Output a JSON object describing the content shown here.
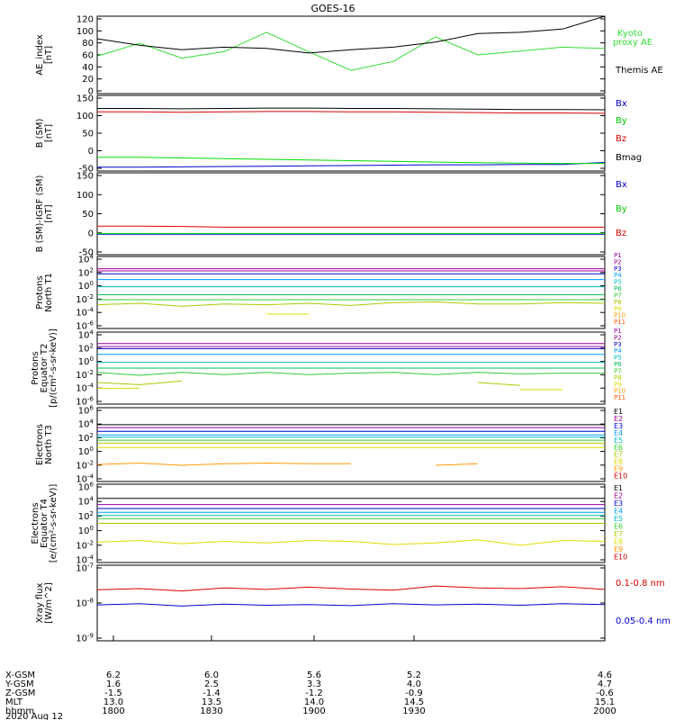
{
  "title": "GOES-16",
  "colors": {
    "black": "#000000",
    "blue": "#0000cc",
    "green": "#00dd00",
    "red": "#dd0000",
    "ae_kyoto": "#33dd33",
    "p": [
      "#cc00cc",
      "#9900cc",
      "#0000ff",
      "#0099ff",
      "#00cccc",
      "#00cc66",
      "#33dd33",
      "#aadd00",
      "#dddd00",
      "#ffaa00",
      "#ff6600",
      "#dd0000",
      "#aa0000"
    ]
  },
  "panels": {
    "ae": {
      "ylabel": [
        "AE_index",
        "[nT]"
      ],
      "yticks": [
        "120",
        "100",
        "80",
        "60",
        "40",
        "20",
        "0"
      ],
      "legend": [
        {
          "text": "Kyoto",
          "color": "#33dd33"
        },
        {
          "text": "proxy AE",
          "color": "#33dd33"
        },
        {
          "text": "Themis AE",
          "color": "#000000"
        }
      ]
    },
    "b": {
      "ylabel": [
        "B (SM)",
        "[nT]"
      ],
      "yticks": [
        "150",
        "100",
        "50",
        "0",
        "-50"
      ],
      "legend": [
        {
          "text": "Bx",
          "color": "#0000cc"
        },
        {
          "text": "By",
          "color": "#00cc00"
        },
        {
          "text": "Bz",
          "color": "#dd0000"
        },
        {
          "text": "Bmag",
          "color": "#000000"
        }
      ]
    },
    "bigrf": {
      "ylabel": [
        "B (SM)-IGRF (SM)",
        "[nT]"
      ],
      "yticks": [
        "150",
        "100",
        "50",
        "0",
        "-50"
      ],
      "legend": [
        {
          "text": "Bx",
          "color": "#0000cc"
        },
        {
          "text": "By",
          "color": "#00cc00"
        },
        {
          "text": "Bz",
          "color": "#dd0000"
        }
      ]
    },
    "pn": {
      "ylabel": [
        "Protons",
        "North T1"
      ],
      "yticks": [
        "10^4",
        "10^2",
        "10^0",
        "10^-2",
        "10^-4",
        "10^-6"
      ],
      "legend": [
        "P1",
        "P2",
        "P3",
        "P4",
        "P5",
        "P6",
        "P7",
        "P8",
        "P9",
        "P10",
        "P11"
      ]
    },
    "pe": {
      "ylabel": [
        "Protons",
        "Equator T2",
        "[p/(cm²-s-sr-keV)]"
      ],
      "yticks": [
        "10^4",
        "10^2",
        "10^0",
        "10^-2",
        "10^-4",
        "10^-6"
      ],
      "legend": [
        "P1",
        "P2",
        "P3",
        "P4",
        "P5",
        "P6",
        "P7",
        "P8",
        "P9",
        "P10",
        "P11"
      ]
    },
    "en": {
      "ylabel": [
        "Electrons",
        "North T3"
      ],
      "yticks": [
        "10^6",
        "10^4",
        "10^2",
        "10^0",
        "10^-2",
        "10^-4"
      ],
      "legend": [
        "E1",
        "E2",
        "E3",
        "E4",
        "E5",
        "E6",
        "E7",
        "E8",
        "E9",
        "E10"
      ]
    },
    "ee": {
      "ylabel": [
        "Electrons",
        "Equator T4",
        "[e/(cm²-s-sr-keV)]"
      ],
      "yticks": [
        "10^6",
        "10^4",
        "10^2",
        "10^0",
        "10^-2",
        "10^-4"
      ],
      "legend": [
        "E1",
        "E2",
        "E3",
        "E4",
        "E5",
        "E6",
        "E7",
        "E8",
        "E9",
        "E10"
      ]
    },
    "xray": {
      "ylabel": [
        "Xray flux",
        "[W/m^2]"
      ],
      "yticks": [
        "10^-7",
        "10^-8",
        "10^-9"
      ],
      "legend": [
        {
          "text": "0.1-0.8 nm",
          "color": "#dd0000"
        },
        {
          "text": "0.05-0.4 nm",
          "color": "#0000cc"
        }
      ]
    }
  },
  "xaxis": {
    "row_labels": [
      "X-GSM",
      "Y-GSM",
      "Z-GSM",
      "MLT",
      "hhmm",
      "2020 Aug 12"
    ],
    "columns": [
      {
        "x": "6.2",
        "y": "1.6",
        "z": "-1.5",
        "mlt": "13.0",
        "hhmm": "1800"
      },
      {
        "x": "6.0",
        "y": "2.5",
        "z": "-1.4",
        "mlt": "13.5",
        "hhmm": "1830"
      },
      {
        "x": "5.6",
        "y": "3.3",
        "z": "-1.2",
        "mlt": "14.0",
        "hhmm": "1900"
      },
      {
        "x": "5.2",
        "y": "4.0",
        "z": "-0.9",
        "mlt": "14.5",
        "hhmm": "1930"
      },
      {
        "x": "4.6",
        "y": "4.7",
        "z": "-0.6",
        "mlt": "15.1",
        "hhmm": "2000"
      }
    ]
  },
  "chart_data": {
    "type": "line",
    "title": "GOES-16",
    "x_time_hhmm": [
      "1800",
      "1810",
      "1820",
      "1830",
      "1840",
      "1850",
      "1900",
      "1910",
      "1920",
      "1930",
      "1940",
      "1950",
      "2000"
    ],
    "ae": {
      "ylim": [
        0,
        120
      ],
      "series": [
        {
          "name": "Kyoto proxy AE",
          "values": [
            58,
            78,
            55,
            65,
            95,
            65,
            36,
            50,
            88,
            60,
            66,
            72,
            70
          ]
        },
        {
          "name": "Themis AE",
          "values": [
            85,
            75,
            68,
            72,
            70,
            63,
            68,
            72,
            80,
            93,
            95,
            100,
            120
          ]
        }
      ]
    },
    "b_sm": {
      "ylim": [
        -60,
        160
      ],
      "series": [
        {
          "name": "Bx",
          "values": [
            -49,
            -49,
            -48,
            -47,
            -46,
            -45,
            -44,
            -43,
            -42,
            -42,
            -41,
            -41,
            -35
          ]
        },
        {
          "name": "By",
          "values": [
            -20,
            -20,
            -22,
            -24,
            -26,
            -28,
            -30,
            -32,
            -34,
            -36,
            -37,
            -38,
            -38
          ]
        },
        {
          "name": "Bz",
          "values": [
            112,
            112,
            111,
            112,
            113,
            113,
            112,
            112,
            111,
            110,
            109,
            109,
            108
          ]
        },
        {
          "name": "Bmag",
          "values": [
            122,
            122,
            121,
            122,
            123,
            123,
            122,
            122,
            121,
            120,
            119,
            119,
            118
          ]
        }
      ]
    },
    "b_minus_igrf": {
      "ylim": [
        -60,
        160
      ],
      "series": [
        {
          "name": "Bx",
          "values": [
            -5,
            -5,
            -5,
            -5,
            -5,
            -5,
            -5,
            -5,
            -5,
            -5,
            -5,
            -5,
            -5
          ]
        },
        {
          "name": "By",
          "values": [
            -3,
            -3,
            -3,
            -3,
            -3,
            -3,
            -3,
            -3,
            -3,
            -3,
            -3,
            -3,
            -3
          ]
        },
        {
          "name": "Bz",
          "values": [
            17,
            17,
            16,
            14,
            14,
            14,
            14,
            14,
            14,
            14,
            14,
            14,
            14
          ]
        }
      ]
    },
    "protons_north_log10": {
      "ylim": [
        -6,
        4
      ],
      "series": [
        {
          "name": "P1",
          "values": [
            2.3,
            2.3,
            2.3,
            2.3,
            2.3,
            2.3,
            2.3,
            2.3,
            2.3,
            2.3,
            2.3,
            2.3,
            2.3
          ]
        },
        {
          "name": "P2",
          "values": [
            2.0,
            2.0,
            2.0,
            2.0,
            2.0,
            2.0,
            2.0,
            2.0,
            2.0,
            2.0,
            2.0,
            2.0,
            2.0
          ]
        },
        {
          "name": "P3",
          "values": [
            1.6,
            1.6,
            1.6,
            1.6,
            1.6,
            1.6,
            1.6,
            1.6,
            1.6,
            1.6,
            1.6,
            1.6,
            1.6
          ]
        },
        {
          "name": "P4",
          "values": [
            0.8,
            0.8,
            0.8,
            0.8,
            0.8,
            0.8,
            0.8,
            0.8,
            0.8,
            0.8,
            0.8,
            0.8,
            0.8
          ]
        },
        {
          "name": "P5",
          "values": [
            -0.2,
            -0.2,
            -0.2,
            -0.2,
            -0.2,
            -0.2,
            -0.2,
            -0.2,
            -0.2,
            -0.2,
            -0.2,
            -0.2,
            -0.2
          ]
        },
        {
          "name": "P6",
          "values": [
            -1.3,
            -1.3,
            -1.3,
            -1.3,
            -1.3,
            -1.3,
            -1.3,
            -1.3,
            -1.3,
            -1.3,
            -1.3,
            -1.3,
            -1.3
          ]
        },
        {
          "name": "P7",
          "values": [
            -2.0,
            -2.0,
            -2.0,
            -2.0,
            -2.0,
            -2.0,
            -2.0,
            -2.0,
            -2.0,
            -2.0,
            -2.0,
            -2.0,
            -2.0
          ]
        },
        {
          "name": "P8",
          "values": [
            -2.7,
            -2.5,
            -2.9,
            -2.6,
            -2.7,
            -2.5,
            -2.8,
            -2.4,
            -2.3,
            -2.6,
            -2.6,
            -2.4,
            -2.5
          ]
        },
        {
          "name": "P9",
          "values": [
            null,
            null,
            null,
            null,
            -4.0,
            -4.0,
            null,
            null,
            null,
            null,
            null,
            null,
            null
          ]
        }
      ]
    },
    "protons_equator_log10": {
      "ylim": [
        -6,
        4
      ],
      "series": [
        {
          "name": "P1",
          "values": [
            2.4,
            2.4,
            2.4,
            2.4,
            2.4,
            2.4,
            2.4,
            2.4,
            2.4,
            2.4,
            2.4,
            2.4,
            2.4
          ]
        },
        {
          "name": "P2",
          "values": [
            2.0,
            2.0,
            2.0,
            2.0,
            2.0,
            2.0,
            2.0,
            2.0,
            2.0,
            2.0,
            2.0,
            2.0,
            2.0
          ]
        },
        {
          "name": "P3",
          "values": [
            1.7,
            1.7,
            1.7,
            1.7,
            1.7,
            1.7,
            1.7,
            1.7,
            1.7,
            1.7,
            1.7,
            1.7,
            1.7
          ]
        },
        {
          "name": "P4",
          "values": [
            0.9,
            0.9,
            0.9,
            0.9,
            0.9,
            0.9,
            0.9,
            0.9,
            0.9,
            0.9,
            0.9,
            0.9,
            0.9
          ]
        },
        {
          "name": "P5",
          "values": [
            -0.2,
            -0.2,
            -0.2,
            -0.2,
            -0.2,
            -0.2,
            -0.2,
            -0.2,
            -0.2,
            -0.2,
            -0.2,
            -0.2,
            -0.2
          ]
        },
        {
          "name": "P6",
          "values": [
            -1.0,
            -1.0,
            -1.0,
            -1.0,
            -1.0,
            -1.0,
            -1.0,
            -1.0,
            -1.0,
            -1.0,
            -1.0,
            -1.0,
            -1.0
          ]
        },
        {
          "name": "P7",
          "values": [
            -1.6,
            -2.0,
            -1.6,
            -1.9,
            -1.6,
            -1.9,
            -1.7,
            -1.6,
            -1.9,
            -1.6,
            -1.8,
            -1.7,
            -1.7
          ]
        },
        {
          "name": "P8",
          "values": [
            -3.0,
            -3.3,
            -2.8,
            null,
            null,
            null,
            null,
            -3.2,
            null,
            -3.0,
            -3.4,
            null,
            -2.9
          ]
        },
        {
          "name": "P9",
          "values": [
            -3.8,
            -3.8,
            null,
            null,
            null,
            null,
            null,
            null,
            null,
            null,
            -4.0,
            -4.0,
            null
          ]
        }
      ]
    },
    "electrons_north_log10": {
      "ylim": [
        -4,
        6
      ],
      "series": [
        {
          "name": "E1",
          "values": [
            3.7,
            3.7,
            3.7,
            3.7,
            3.7,
            3.7,
            3.7,
            3.7,
            3.7,
            3.7,
            3.7,
            3.7,
            3.7
          ]
        },
        {
          "name": "E2",
          "values": [
            3.3,
            3.3,
            3.3,
            3.3,
            3.3,
            3.3,
            3.3,
            3.3,
            3.3,
            3.3,
            3.3,
            3.3,
            3.3
          ]
        },
        {
          "name": "E3",
          "values": [
            2.8,
            2.8,
            2.8,
            2.8,
            2.8,
            2.8,
            2.8,
            2.8,
            2.8,
            2.8,
            2.8,
            2.8,
            2.8
          ]
        },
        {
          "name": "E4",
          "values": [
            2.3,
            2.3,
            2.3,
            2.3,
            2.3,
            2.3,
            2.3,
            2.3,
            2.3,
            2.3,
            2.3,
            2.3,
            2.3
          ]
        },
        {
          "name": "E5",
          "values": [
            2.0,
            2.0,
            2.0,
            2.0,
            2.0,
            2.0,
            2.0,
            2.0,
            2.0,
            2.0,
            2.0,
            2.0,
            2.0
          ]
        },
        {
          "name": "E6",
          "values": [
            1.6,
            1.6,
            1.6,
            1.6,
            1.6,
            1.6,
            1.6,
            1.6,
            1.6,
            1.6,
            1.6,
            1.6,
            1.6
          ]
        },
        {
          "name": "E7",
          "values": [
            1.2,
            1.2,
            1.2,
            1.2,
            1.2,
            1.2,
            1.2,
            1.2,
            1.2,
            1.2,
            1.2,
            1.2,
            1.2
          ]
        },
        {
          "name": "E8",
          "values": [
            0.6,
            0.6,
            0.6,
            0.6,
            0.6,
            0.6,
            0.6,
            0.6,
            0.6,
            0.6,
            0.6,
            0.6,
            0.6
          ]
        },
        {
          "name": "E9",
          "values": [
            -1.7,
            -1.5,
            -1.8,
            -1.6,
            -1.5,
            -1.6,
            -1.6,
            null,
            -1.8,
            -1.6,
            null,
            null,
            -1.7
          ]
        }
      ]
    },
    "electrons_equator_log10": {
      "ylim": [
        -4,
        6
      ],
      "series": [
        {
          "name": "E1",
          "values": [
            4.2,
            4.2,
            4.2,
            4.2,
            4.2,
            4.2,
            4.2,
            4.2,
            4.2,
            4.2,
            4.2,
            4.2,
            4.2
          ]
        },
        {
          "name": "E2",
          "values": [
            3.4,
            3.4,
            3.4,
            3.4,
            3.4,
            3.4,
            3.4,
            3.4,
            3.4,
            3.4,
            3.4,
            3.4,
            3.4
          ]
        },
        {
          "name": "E3",
          "values": [
            2.9,
            2.9,
            2.9,
            2.9,
            2.9,
            2.9,
            2.9,
            2.9,
            2.9,
            2.9,
            2.9,
            2.9,
            2.9
          ]
        },
        {
          "name": "E4",
          "values": [
            2.4,
            2.4,
            2.4,
            2.4,
            2.4,
            2.4,
            2.4,
            2.4,
            2.4,
            2.4,
            2.4,
            2.4,
            2.4
          ]
        },
        {
          "name": "E5",
          "values": [
            2.0,
            2.0,
            2.0,
            2.0,
            2.0,
            2.0,
            2.0,
            2.0,
            2.0,
            2.0,
            2.0,
            2.0,
            2.0
          ]
        },
        {
          "name": "E6",
          "values": [
            1.6,
            1.6,
            1.6,
            1.6,
            1.6,
            1.6,
            1.6,
            1.6,
            1.6,
            1.6,
            1.6,
            1.6,
            1.6
          ]
        },
        {
          "name": "E7",
          "values": [
            1.0,
            1.0,
            1.0,
            1.0,
            1.0,
            1.0,
            1.0,
            1.0,
            1.0,
            1.0,
            1.0,
            1.0,
            1.0
          ]
        },
        {
          "name": "E8",
          "values": [
            -1.4,
            -1.2,
            -1.6,
            -1.3,
            -1.5,
            -1.2,
            -1.3,
            -1.7,
            -1.5,
            -1.1,
            -1.8,
            -1.2,
            -1.3
          ]
        }
      ]
    },
    "xray_log10": {
      "ylim": [
        -9,
        -7
      ],
      "series": [
        {
          "name": "0.1-0.8 nm",
          "values": [
            -7.65,
            -7.62,
            -7.68,
            -7.6,
            -7.64,
            -7.58,
            -7.63,
            -7.66,
            -7.55,
            -7.6,
            -7.62,
            -7.57,
            -7.64
          ]
        },
        {
          "name": "0.05-0.4 nm",
          "values": [
            -8.05,
            -8.02,
            -8.08,
            -8.03,
            -8.06,
            -8.04,
            -8.07,
            -8.02,
            -8.05,
            -8.03,
            -8.06,
            -8.02,
            -8.04
          ]
        }
      ]
    }
  }
}
